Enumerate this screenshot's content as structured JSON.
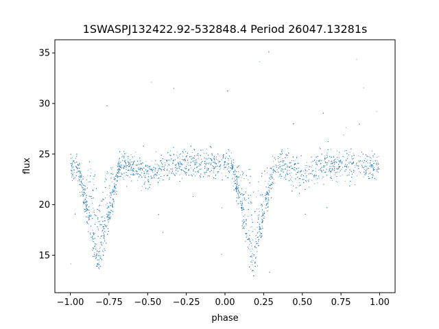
{
  "chart_data": {
    "type": "scatter",
    "title": "1SWASPJ132422.92-532848.4 Period 26047.13281s",
    "xlabel": "phase",
    "ylabel": "flux",
    "xlim": [
      -1.1,
      1.1
    ],
    "ylim": [
      11.3,
      36.3
    ],
    "x_ticks": [
      -1.0,
      -0.75,
      -0.5,
      -0.25,
      0.0,
      0.25,
      0.5,
      0.75,
      1.0
    ],
    "x_tick_labels": [
      "−1.00",
      "−0.75",
      "−0.50",
      "−0.25",
      "0.00",
      "0.25",
      "0.50",
      "0.75",
      "1.00"
    ],
    "y_ticks": [
      15,
      20,
      25,
      30,
      35
    ],
    "y_tick_labels": [
      "15",
      "20",
      "25",
      "30",
      "35"
    ],
    "grid": false,
    "legend": "none",
    "point_color": "#1f77b4",
    "series": [
      {
        "phase_range": [
          -1.0,
          1.0
        ],
        "baseline_flux": 24.0,
        "baseline_scatter": 1.0,
        "eclipses": [
          {
            "center_phase": -0.82,
            "min_flux": 14.0,
            "half_width": 0.14
          },
          {
            "center_phase": 0.18,
            "min_flux": 14.0,
            "half_width": 0.14
          }
        ],
        "secondary_dips": [
          {
            "center_phase": -0.5,
            "min_flux": 23.0
          },
          {
            "center_phase": 0.5,
            "min_flux": 23.0
          }
        ],
        "outlier_range": [
          12.7,
          35.3
        ]
      }
    ]
  }
}
